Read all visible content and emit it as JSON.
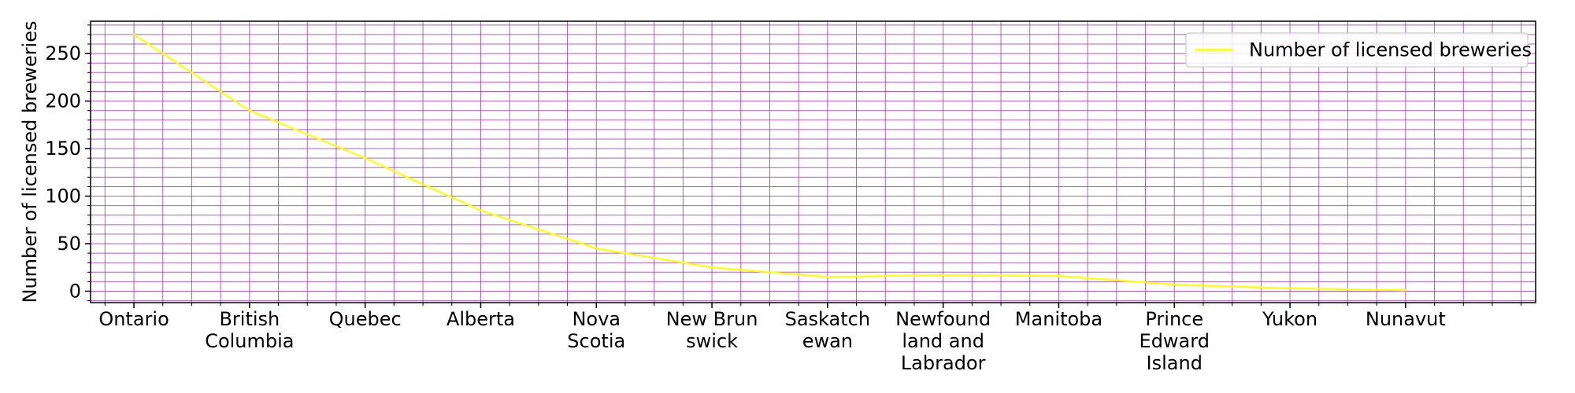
{
  "chart_data": {
    "type": "line",
    "title": "",
    "xlabel": "",
    "ylabel": "Number of licensed breweries",
    "categories": [
      [
        "Ontario"
      ],
      [
        "British",
        "Columbia"
      ],
      [
        "Quebec"
      ],
      [
        "Alberta"
      ],
      [
        "Nova",
        "Scotia"
      ],
      [
        "New Brun",
        "swick"
      ],
      [
        "Saskatch",
        "ewan"
      ],
      [
        "Newfound",
        "land and",
        "Labrador"
      ],
      [
        "Manitoba"
      ],
      [
        "Prince",
        "Edward",
        "Island"
      ],
      [
        "Yukon"
      ],
      [
        "Nunavut"
      ]
    ],
    "series": [
      {
        "name": "Number of licensed breweries",
        "values": [
          270,
          190,
          140,
          85,
          45,
          25,
          15,
          17,
          16,
          7,
          3,
          1
        ],
        "color": "#ffff00"
      }
    ],
    "ylim": [
      -12,
      284
    ],
    "yticks": [
      0,
      50,
      100,
      150,
      200,
      250
    ],
    "grid": true,
    "grid_color": "#9c27b0",
    "legend_position": "top-right"
  }
}
